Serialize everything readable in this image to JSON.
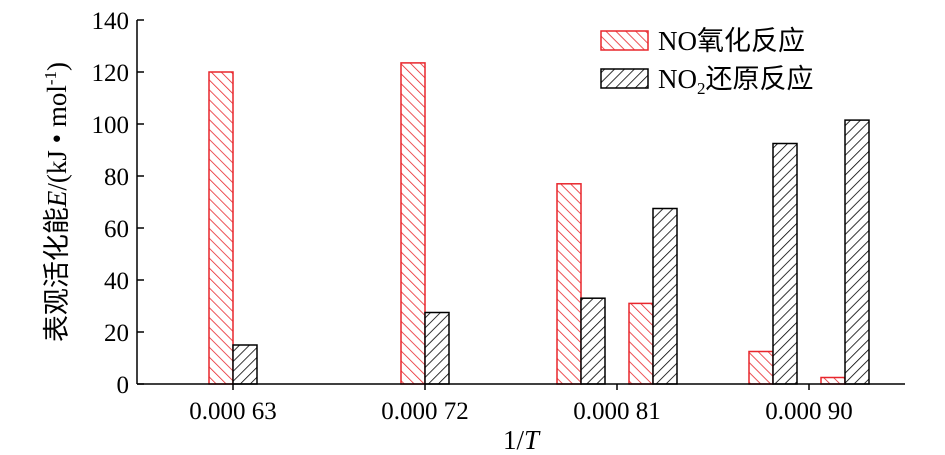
{
  "chart_data": {
    "type": "bar",
    "categories": [
      "0.000 63",
      "0.000 72",
      "0.000 81",
      "0.000 90"
    ],
    "series": [
      {
        "name": "NO氧化反应",
        "color": "#e8262c",
        "pattern": "hatch-right",
        "groups": [
          {
            "category": "0.000 63",
            "values": [
              120
            ]
          },
          {
            "category": "0.000 72",
            "values": [
              123.5
            ]
          },
          {
            "category": "0.000 81",
            "values": [
              77,
              31
            ]
          },
          {
            "category": "0.000 90",
            "values": [
              12.5,
              2.5
            ]
          }
        ]
      },
      {
        "name": "NO2还原反应",
        "color": "#000000",
        "pattern": "hatch-right",
        "groups": [
          {
            "category": "0.000 63",
            "values": [
              15
            ]
          },
          {
            "category": "0.000 72",
            "values": [
              27.5
            ]
          },
          {
            "category": "0.000 81",
            "values": [
              33,
              67.5
            ]
          },
          {
            "category": "0.000 90",
            "values": [
              92.5,
              101.5
            ]
          }
        ]
      }
    ],
    "ylim": [
      0,
      140
    ],
    "yticks": [
      "0",
      "20",
      "40",
      "60",
      "80",
      "100",
      "120",
      "140"
    ],
    "ylabel": {
      "prefix": "表观活化能",
      "italic": "E",
      "suffix": "/(kJ • mol",
      "sup": "-1",
      "close": ")"
    },
    "xlabel": {
      "prefix": "1/",
      "italic": "T"
    },
    "legend": {
      "position": "top-right",
      "items": [
        {
          "label": "NO氧化反应"
        },
        {
          "label_parts": [
            "NO",
            "2",
            "还原反应"
          ]
        }
      ]
    }
  }
}
